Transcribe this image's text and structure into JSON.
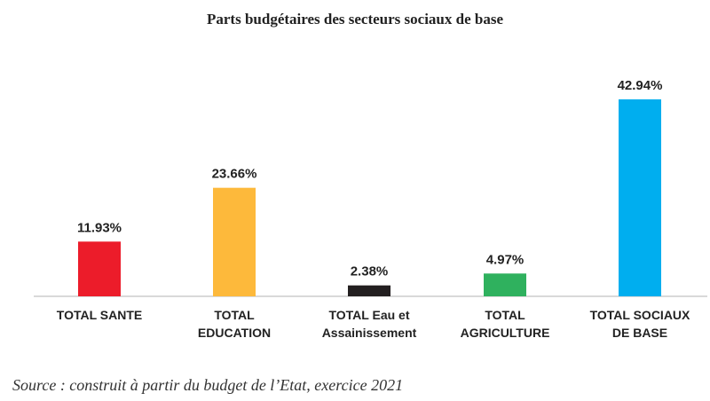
{
  "chart_data": {
    "type": "bar",
    "title": "Parts budgétaires des secteurs sociaux de base",
    "categories": [
      [
        "TOTAL SANTE"
      ],
      [
        "TOTAL",
        "EDUCATION"
      ],
      [
        "TOTAL Eau et",
        "Assainissement"
      ],
      [
        "TOTAL",
        "AGRICULTURE"
      ],
      [
        "TOTAL SOCIAUX",
        "DE BASE"
      ]
    ],
    "values": [
      11.93,
      23.66,
      2.38,
      4.97,
      42.94
    ],
    "value_labels": [
      "11.93%",
      "23.66%",
      "2.38%",
      "4.97%",
      "42.94%"
    ],
    "colors": [
      "#ec1c2a",
      "#fdb93b",
      "#231f20",
      "#2fb15e",
      "#00aeef"
    ],
    "xlabel": "",
    "ylabel": "",
    "ylim": [
      0,
      45
    ],
    "grid": false,
    "legend": "none"
  },
  "source": "Source : construit à partir du budget de l’Etat, exercice 2021"
}
